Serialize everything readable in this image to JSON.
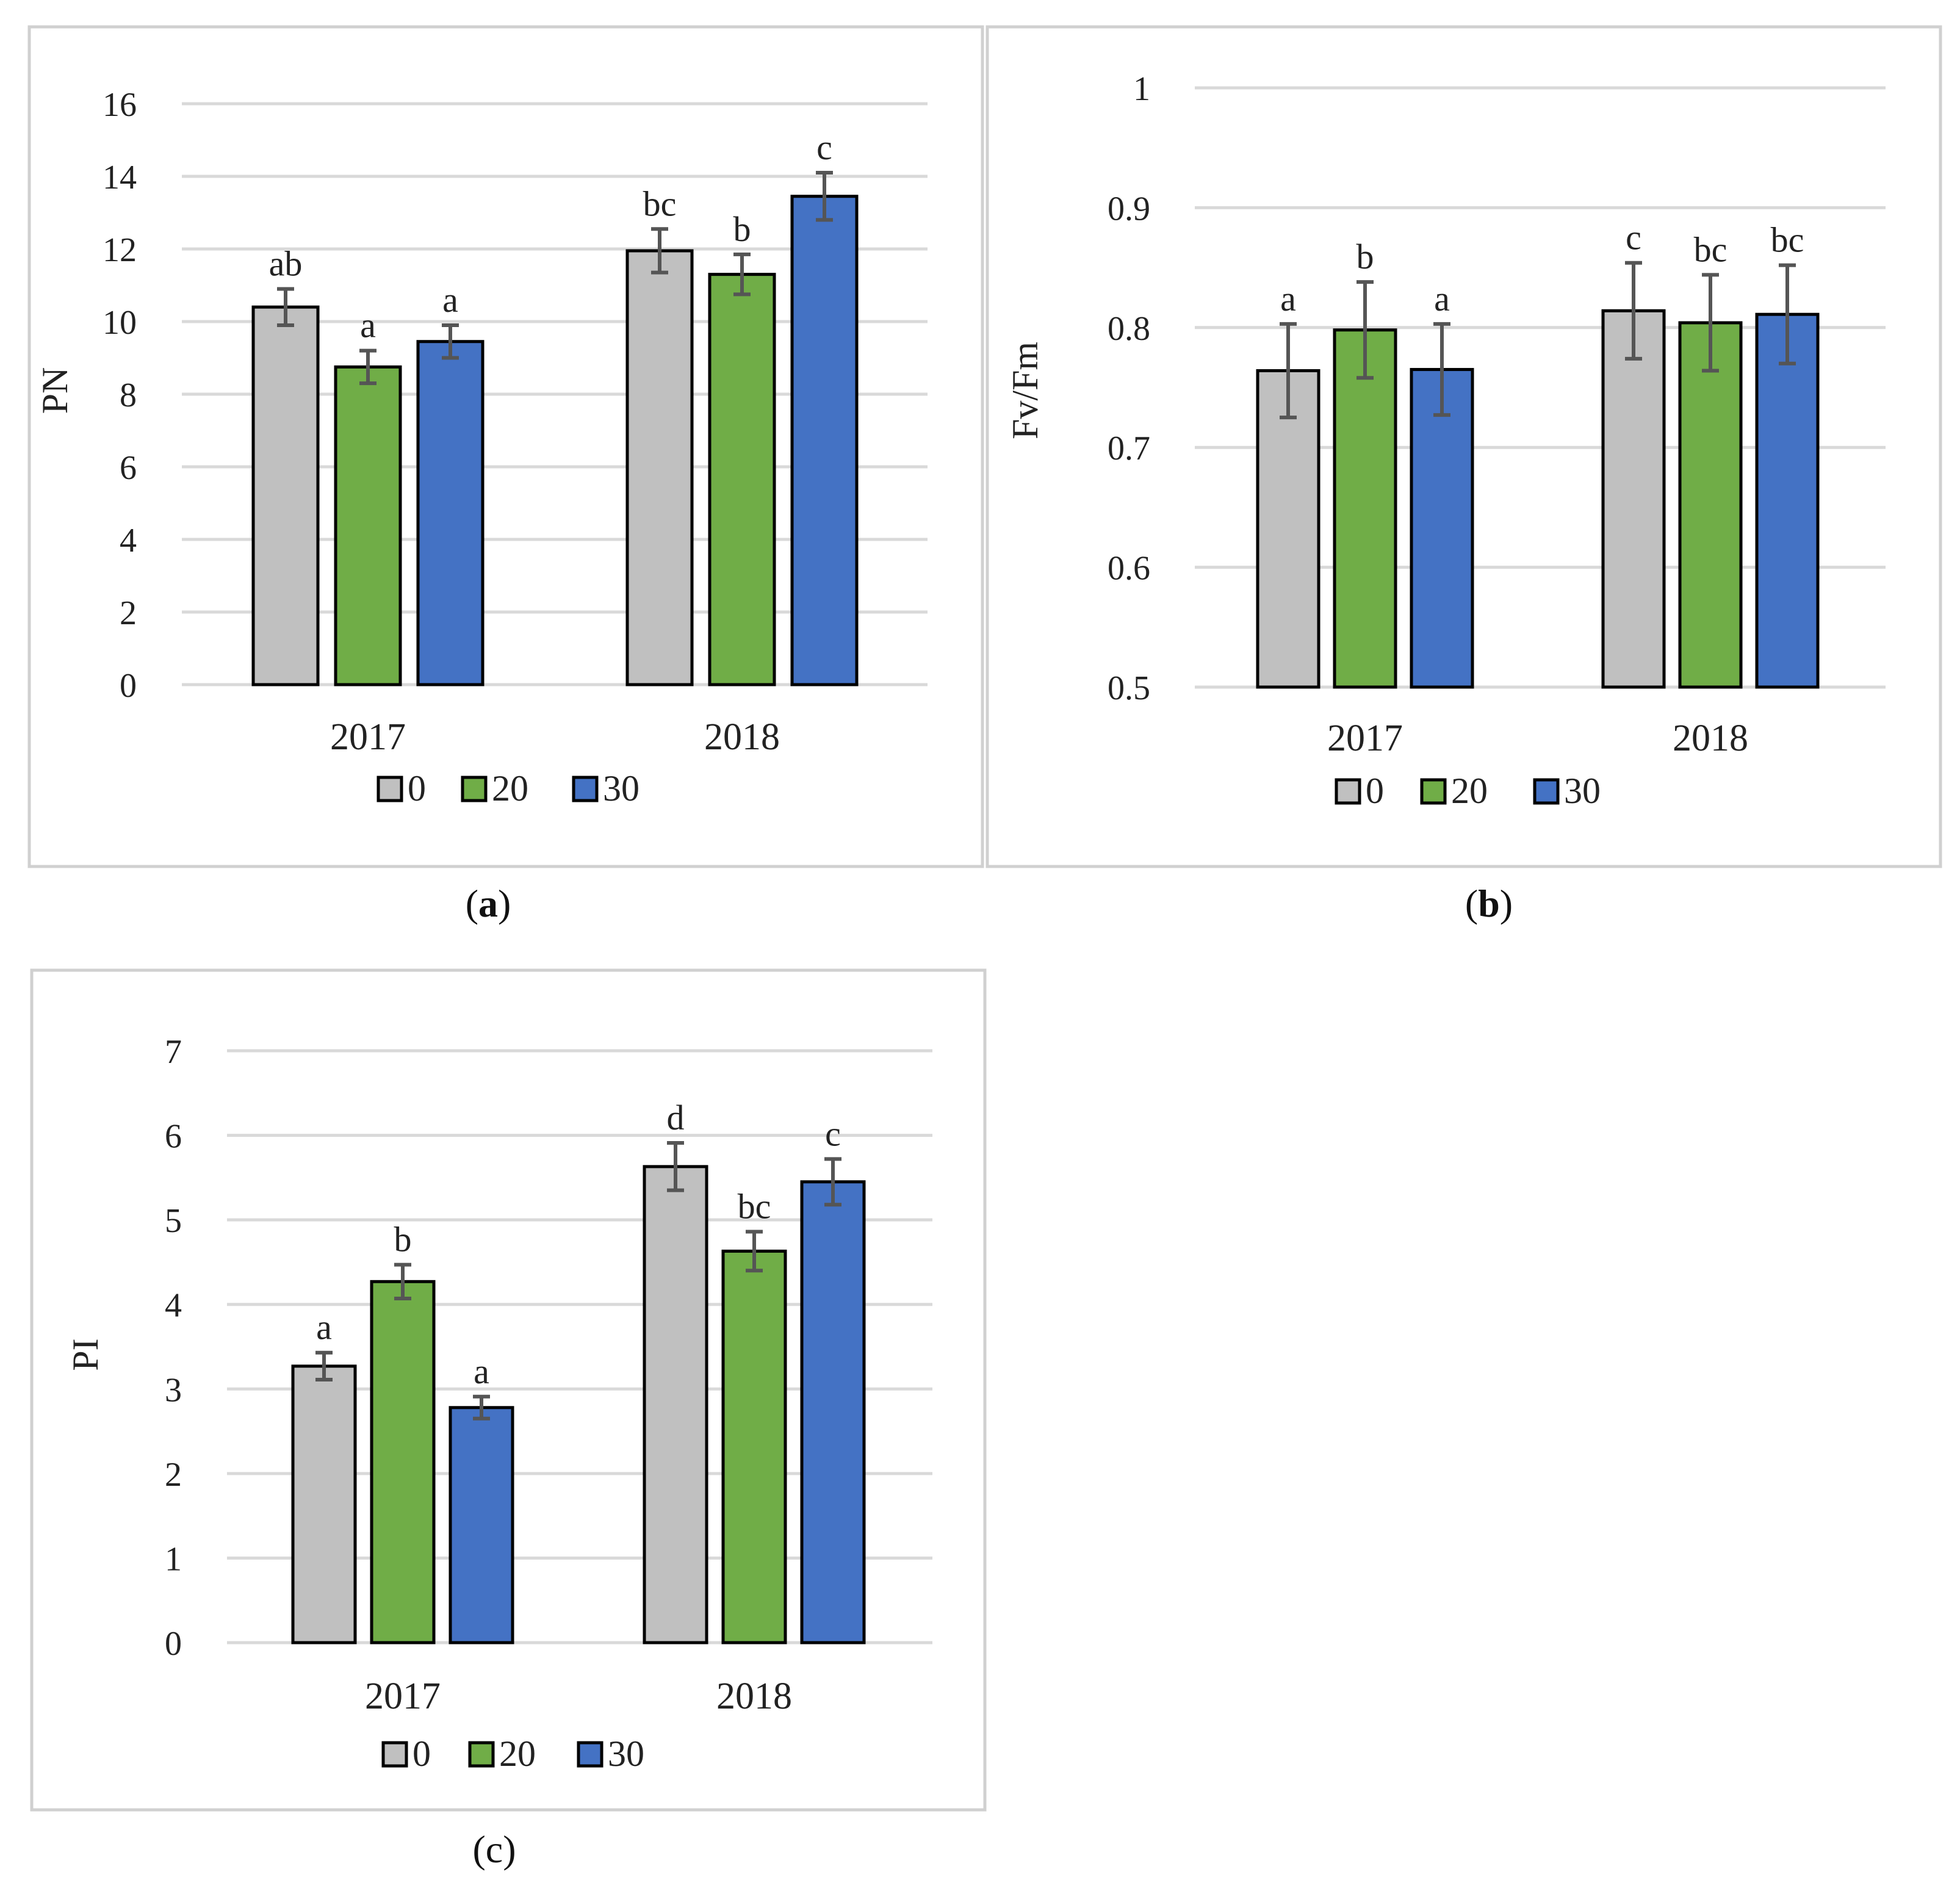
{
  "colors": {
    "s0": "#c0c0c0",
    "s20": "#70ad47",
    "s30": "#4472c4",
    "err": "#555555",
    "grid": "#d9d9d9",
    "frame": "#d0d0d0"
  },
  "legend": [
    "0",
    "20",
    "30"
  ],
  "captions": {
    "a": {
      "pre": "(",
      "letter": "a",
      "post": ")"
    },
    "b": {
      "pre": "(",
      "letter": "b",
      "post": ")"
    },
    "c": {
      "pre": "(",
      "letter": "c",
      "post": ")"
    }
  },
  "chart_data": [
    {
      "id": "a",
      "type": "bar",
      "title": "",
      "xlabel": "",
      "ylabel": "PN",
      "ylim": [
        0,
        16
      ],
      "ticks": [
        "0",
        "2",
        "4",
        "6",
        "8",
        "10",
        "12",
        "14",
        "16"
      ],
      "tick_values": [
        0,
        2,
        4,
        6,
        8,
        10,
        12,
        14,
        16
      ],
      "categories": [
        "2017",
        "2018"
      ],
      "series": [
        {
          "name": "0",
          "values": [
            10.4,
            11.95
          ],
          "errors": [
            0.5,
            0.6
          ],
          "letters": [
            "ab",
            "bc"
          ]
        },
        {
          "name": "20",
          "values": [
            8.75,
            11.3
          ],
          "errors": [
            0.45,
            0.55
          ],
          "letters": [
            "a",
            "b"
          ]
        },
        {
          "name": "30",
          "values": [
            9.45,
            13.45
          ],
          "errors": [
            0.45,
            0.65
          ],
          "letters": [
            "a",
            "c"
          ]
        }
      ],
      "grid": true,
      "legend_position": "bottom"
    },
    {
      "id": "b",
      "type": "bar",
      "title": "",
      "xlabel": "",
      "ylabel": "Fv/Fm",
      "ylim": [
        0.5,
        1.0
      ],
      "ticks": [
        "0.5",
        "0.6",
        "0.7",
        "0.8",
        "0.9",
        "1"
      ],
      "tick_values": [
        0.5,
        0.6,
        0.7,
        0.8,
        0.9,
        1.0
      ],
      "categories": [
        "2017",
        "2018"
      ],
      "series": [
        {
          "name": "0",
          "values": [
            0.764,
            0.814
          ],
          "errors": [
            0.039,
            0.04
          ],
          "letters": [
            "a",
            "c"
          ]
        },
        {
          "name": "20",
          "values": [
            0.798,
            0.804
          ],
          "errors": [
            0.04,
            0.04
          ],
          "letters": [
            "b",
            "bc"
          ]
        },
        {
          "name": "30",
          "values": [
            0.765,
            0.811
          ],
          "errors": [
            0.038,
            0.041
          ],
          "letters": [
            "a",
            "bc"
          ]
        }
      ],
      "grid": true,
      "legend_position": "bottom"
    },
    {
      "id": "c",
      "type": "bar",
      "title": "",
      "xlabel": "",
      "ylabel": "PI",
      "ylim": [
        0,
        7
      ],
      "ticks": [
        "0",
        "1",
        "2",
        "3",
        "4",
        "5",
        "6",
        "7"
      ],
      "tick_values": [
        0,
        1,
        2,
        3,
        4,
        5,
        6,
        7
      ],
      "categories": [
        "2017",
        "2018"
      ],
      "series": [
        {
          "name": "0",
          "values": [
            3.27,
            5.63
          ],
          "errors": [
            0.16,
            0.28
          ],
          "letters": [
            "a",
            "d"
          ]
        },
        {
          "name": "20",
          "values": [
            4.27,
            4.63
          ],
          "errors": [
            0.2,
            0.23
          ],
          "letters": [
            "b",
            "bc"
          ]
        },
        {
          "name": "30",
          "values": [
            2.78,
            5.45
          ],
          "errors": [
            0.13,
            0.27
          ],
          "letters": [
            "a",
            "c"
          ]
        }
      ],
      "grid": true,
      "legend_position": "bottom"
    }
  ]
}
